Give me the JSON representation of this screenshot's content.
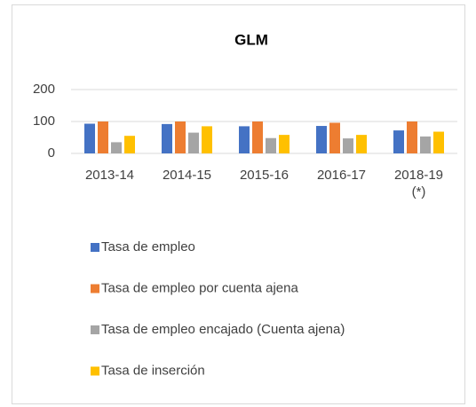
{
  "chart_data": {
    "type": "bar",
    "title": "GLM",
    "categories": [
      "2013-14",
      "2014-15",
      "2015-16",
      "2016-17",
      "2018-19 (*)"
    ],
    "series": [
      {
        "name": "Tasa de empleo",
        "color": "#4472c4",
        "values": [
          93,
          92,
          85,
          86,
          72
        ]
      },
      {
        "name": "Tasa de empleo por cuenta ajena",
        "color": "#ed7d31",
        "values": [
          100,
          100,
          100,
          96,
          100
        ]
      },
      {
        "name": "Tasa de empleo encajado (Cuenta ajena)",
        "color": "#a5a5a5",
        "values": [
          35,
          65,
          48,
          47,
          53
        ]
      },
      {
        "name": "Tasa de inserción",
        "color": "#ffc000",
        "values": [
          55,
          85,
          58,
          58,
          68
        ]
      }
    ],
    "ylim": [
      0,
      200
    ],
    "yticks": [
      0,
      100,
      200
    ],
    "grid": true,
    "legend": "bottom"
  }
}
